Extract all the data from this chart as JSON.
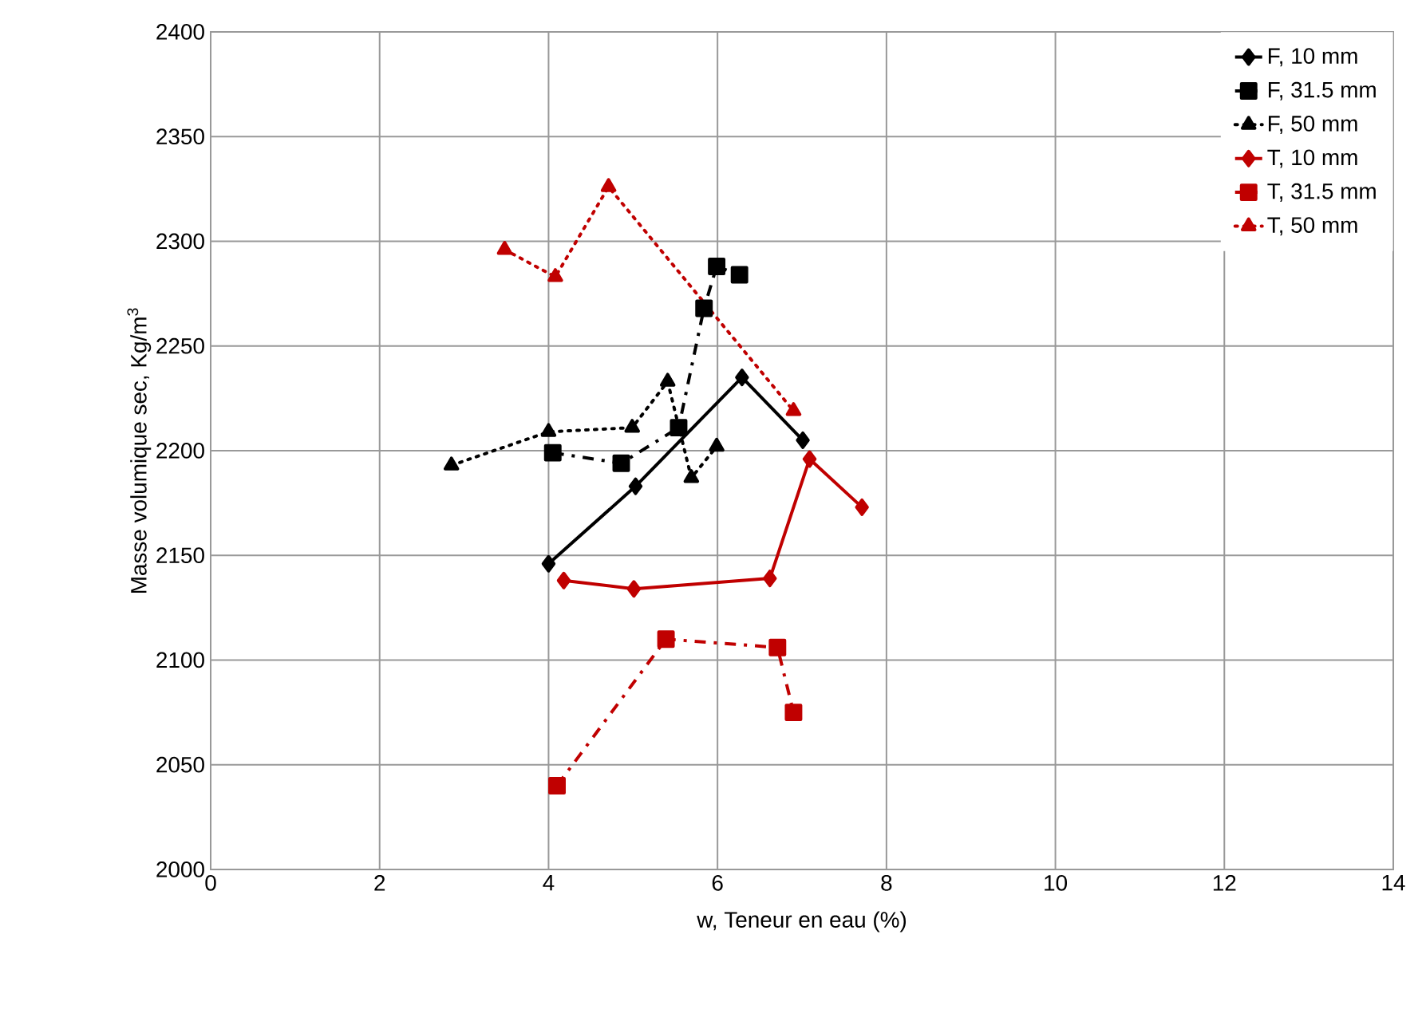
{
  "chart_data": {
    "type": "line",
    "xlabel": "w, Teneur en eau (%)",
    "ylabel": "Masse volumique sec, Kg/m$^{3}$",
    "xlim": [
      0,
      14
    ],
    "xticks": [
      0,
      2,
      4,
      6,
      8,
      10,
      12,
      14
    ],
    "ylim": [
      2000,
      2400
    ],
    "yticks": [
      2000,
      2050,
      2100,
      2150,
      2200,
      2250,
      2300,
      2350,
      2400
    ],
    "grid": true,
    "legend": "top right",
    "series": [
      {
        "name": "F, 10 mm",
        "color": "#000000",
        "marker": "diamond",
        "line_style": "solid",
        "x": [
          4.0,
          5.03,
          6.29,
          7.01
        ],
        "values": [
          2146,
          2183,
          2235,
          2205
        ]
      },
      {
        "name": "F, 31.5 mm",
        "color": "#000000",
        "marker": "square",
        "line_style": "dashed",
        "x": [
          4.05,
          4.86,
          5.54,
          5.84,
          5.99,
          6.26
        ],
        "values": [
          2199,
          2194,
          2211,
          2268,
          2288,
          2284
        ]
      },
      {
        "name": "F, 50 mm",
        "color": "#000000",
        "marker": "triangle",
        "line_style": "dotted",
        "x": [
          2.85,
          4.0,
          4.99,
          5.41,
          5.69,
          5.99
        ],
        "values": [
          2193,
          2209,
          2211,
          2233,
          2187,
          2202
        ]
      },
      {
        "name": "T, 10 mm",
        "color": "#c00000",
        "marker": "diamond",
        "line_style": "solid",
        "x": [
          4.18,
          5.01,
          6.62,
          7.09,
          7.71
        ],
        "values": [
          2138,
          2134,
          2139,
          2196,
          2173
        ]
      },
      {
        "name": "T, 31.5 mm",
        "color": "#c00000",
        "marker": "square",
        "line_style": "dashed",
        "x": [
          4.1,
          5.39,
          6.71,
          6.9
        ],
        "values": [
          2040,
          2110,
          2106,
          2075
        ]
      },
      {
        "name": "T, 50 mm",
        "color": "#c00000",
        "marker": "triangle",
        "line_style": "dotted",
        "x": [
          3.48,
          4.08,
          4.71,
          6.9
        ],
        "values": [
          2296,
          2283,
          2326,
          2219
        ]
      }
    ]
  }
}
